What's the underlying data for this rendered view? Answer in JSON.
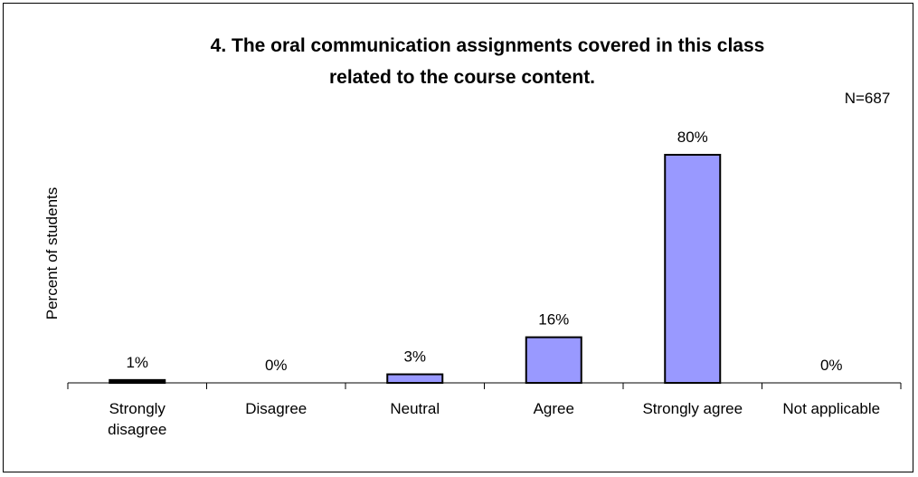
{
  "chart_data": {
    "type": "bar",
    "title_lines": [
      "4. The oral communication assignments covered in this class",
      "related to the course content."
    ],
    "n_label": "N=687",
    "ylabel": "Percent of students",
    "xlabel": "",
    "categories": [
      [
        "Strongly",
        "disagree"
      ],
      [
        "Disagree"
      ],
      [
        "Neutral"
      ],
      [
        "Agree"
      ],
      [
        "Strongly agree"
      ],
      [
        "Not applicable"
      ]
    ],
    "values": [
      1,
      0,
      3,
      16,
      80,
      0
    ],
    "value_labels": [
      "1%",
      "0%",
      "3%",
      "16%",
      "80%",
      "0%"
    ],
    "ylim": [
      0,
      100
    ],
    "grid": false,
    "colors": {
      "bar_fill": "#9999FF",
      "first_bar_fill": "#000000",
      "bar_stroke": "#000000",
      "axis": "#000000"
    }
  }
}
